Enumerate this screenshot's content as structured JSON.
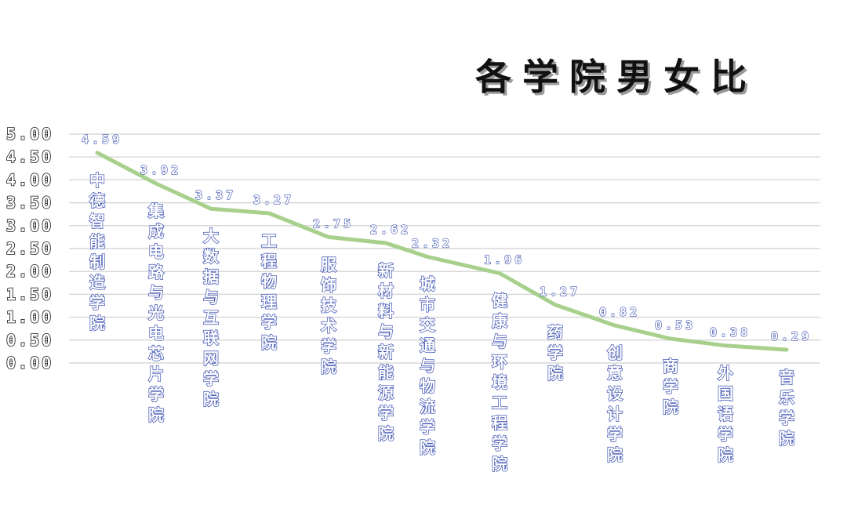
{
  "chart_data": {
    "type": "line",
    "title": "各学院男女比",
    "xlabel": "",
    "ylabel": "",
    "ylim": [
      0,
      5
    ],
    "yticks": [
      "5.00",
      "4.50",
      "4.00",
      "3.50",
      "3.00",
      "2.50",
      "2.00",
      "1.50",
      "1.00",
      "0.50",
      "0.00"
    ],
    "grid": true,
    "line_color": "#a8d08d",
    "label_color": "#3a4fb0",
    "categories": [
      "中德智能制造学院",
      "集成电路与光电芯片学院",
      "大数据与互联网学院",
      "工程物理学院",
      "服饰技术学院",
      "新材料与新能源学院",
      "城市交通与物流学院",
      "健康与环境工程学院",
      "药学院",
      "创意设计学院",
      "商学院",
      "外国语学院",
      "音乐学院"
    ],
    "values": [
      4.59,
      3.92,
      3.37,
      3.27,
      2.75,
      2.62,
      2.32,
      1.96,
      1.27,
      0.82,
      0.53,
      0.38,
      0.29
    ],
    "data_labels": [
      "4.59",
      "3.92",
      "3.37",
      "3.27",
      "2.75",
      "2.62",
      "2.32",
      "1.96",
      "1.27",
      "0.82",
      "0.53",
      "0.38",
      "0.29"
    ]
  }
}
